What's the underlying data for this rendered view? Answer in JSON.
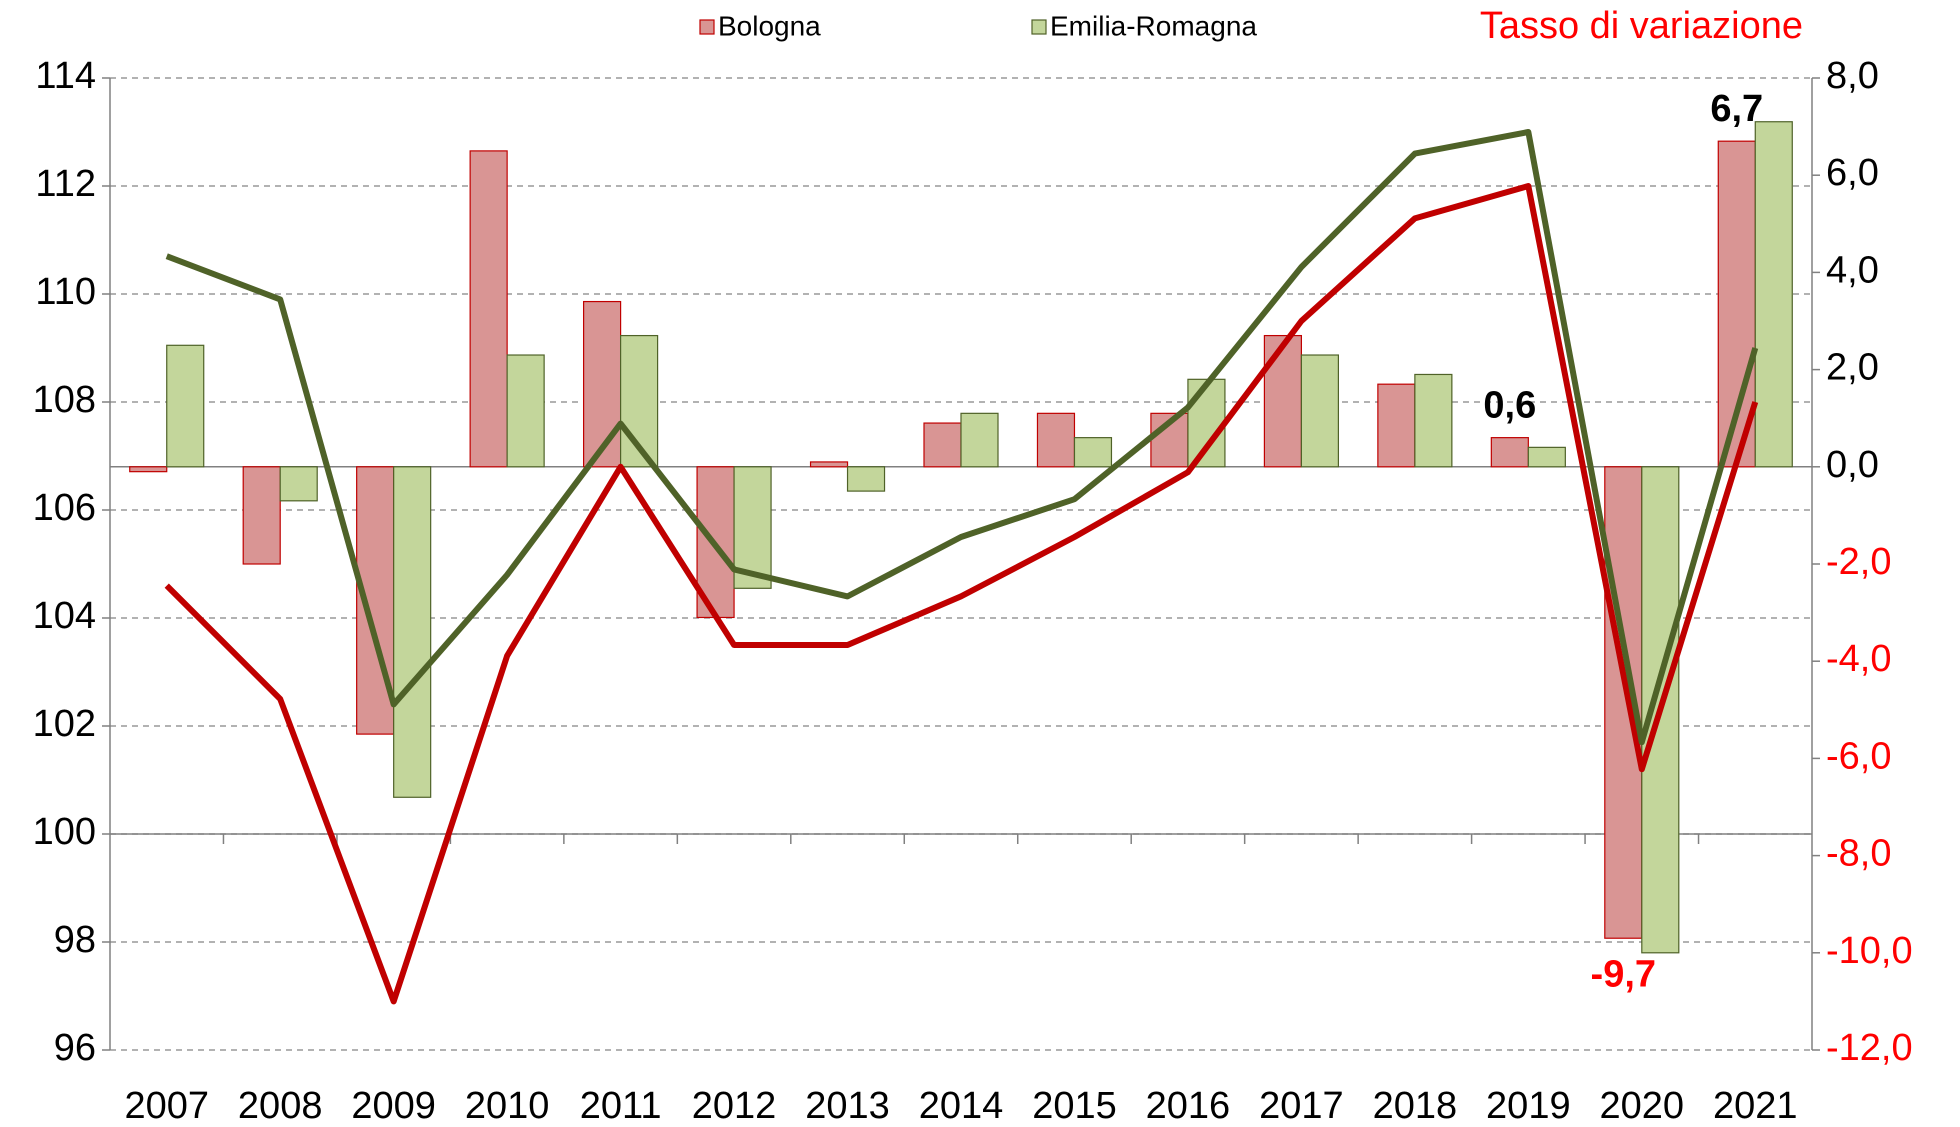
{
  "chart_data": {
    "type": "bar_line",
    "annotation": "Tasso di variazione",
    "categories": [
      "2007",
      "2008",
      "2009",
      "2010",
      "2011",
      "2012",
      "2013",
      "2014",
      "2015",
      "2016",
      "2017",
      "2018",
      "2019",
      "2020",
      "2021"
    ],
    "series": [
      {
        "name": "Bologna",
        "color": "#d99594",
        "edge": "#c00000",
        "axis": "y2",
        "values": [
          -0.1,
          -2.0,
          -5.5,
          6.5,
          3.4,
          -3.1,
          0.1,
          0.9,
          1.1,
          1.1,
          2.7,
          1.7,
          0.6,
          -9.7,
          6.7
        ],
        "value_labels": [
          null,
          null,
          null,
          null,
          null,
          null,
          null,
          null,
          null,
          null,
          null,
          null,
          "0,6",
          "-9,7",
          "6,7"
        ]
      },
      {
        "name": "Emilia-Romagna",
        "color": "#c3d69b",
        "edge": "#4f6228",
        "axis": "y2",
        "values": [
          2.5,
          -0.7,
          -6.8,
          2.3,
          2.7,
          -2.5,
          -0.5,
          1.1,
          0.6,
          1.8,
          2.3,
          1.9,
          0.4,
          -10.0,
          7.1
        ]
      }
    ],
    "lines": [
      {
        "color": "#c00000",
        "values": [
          104.6,
          102.5,
          96.9,
          103.3,
          106.8,
          103.5,
          103.5,
          104.4,
          105.5,
          106.7,
          109.5,
          111.4,
          112.0,
          101.2,
          108.0
        ]
      },
      {
        "color": "#4f6228",
        "values": [
          110.7,
          109.9,
          102.4,
          104.8,
          107.6,
          104.9,
          104.4,
          105.5,
          106.2,
          107.9,
          110.5,
          112.6,
          113.0,
          101.7,
          109.0
        ]
      }
    ],
    "ylim": [
      96,
      114
    ],
    "yticks": [
      96,
      98,
      100,
      102,
      104,
      106,
      108,
      110,
      112,
      114
    ],
    "y2lim": [
      -12,
      8
    ],
    "y2ticks": [
      {
        "value": -12,
        "label": "-12,0"
      },
      {
        "value": -10,
        "label": "-10,0"
      },
      {
        "value": -8,
        "label": "-8,0"
      },
      {
        "value": -6,
        "label": "-6,0"
      },
      {
        "value": -4,
        "label": "-4,0"
      },
      {
        "value": -2,
        "label": "-2,0"
      },
      {
        "value": 0,
        "label": "0,0"
      },
      {
        "value": 2,
        "label": "2,0"
      },
      {
        "value": 4,
        "label": "4,0"
      },
      {
        "value": 6,
        "label": "6,0"
      },
      {
        "value": 8,
        "label": "8,0"
      }
    ],
    "xaxis_crossing": 100,
    "grid": true,
    "negative_color": "#ff0000"
  }
}
